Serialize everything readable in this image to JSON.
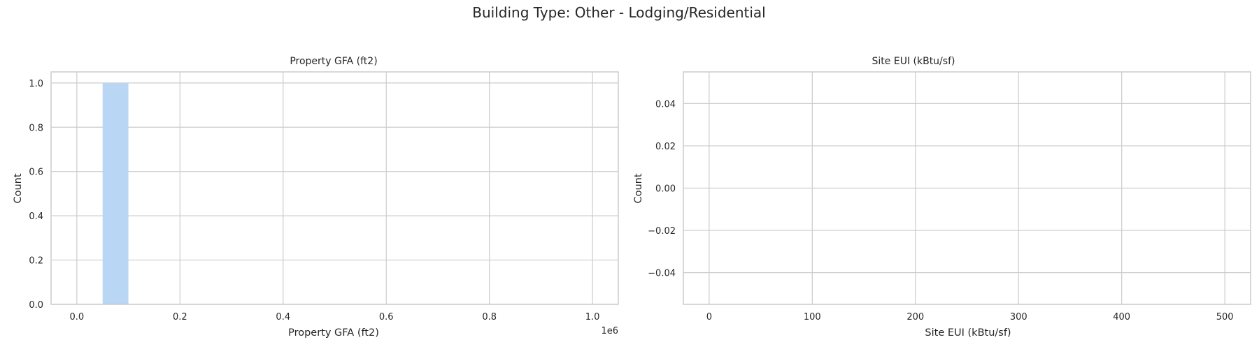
{
  "suptitle": "Building Type: Other - Lodging/Residential",
  "chart_data": [
    {
      "type": "bar",
      "subtype": "histogram",
      "title": "Property GFA (ft2)",
      "xlabel": "Property GFA (ft2)",
      "ylabel": "Count",
      "x_offset_label": "1e6",
      "xlim": [
        -0.05,
        1.05
      ],
      "ylim": [
        0,
        1.05
      ],
      "xticks": [
        0.0,
        0.2,
        0.4,
        0.6,
        0.8,
        1.0
      ],
      "xtick_labels": [
        "0.0",
        "0.2",
        "0.4",
        "0.6",
        "0.8",
        "1.0"
      ],
      "yticks": [
        0.0,
        0.2,
        0.4,
        0.6,
        0.8,
        1.0
      ],
      "ytick_labels": [
        "0.0",
        "0.2",
        "0.4",
        "0.6",
        "0.8",
        "1.0"
      ],
      "bins": [
        {
          "x0": 0.05,
          "x1": 0.1,
          "count": 1
        }
      ],
      "bar_color": "#b9d6f5",
      "grid": true
    },
    {
      "type": "bar",
      "subtype": "histogram",
      "title": "Site EUI (kBtu/sf)",
      "xlabel": "Site EUI (kBtu/sf)",
      "ylabel": "Count",
      "xlim": [
        -25,
        525
      ],
      "ylim": [
        -0.055,
        0.055
      ],
      "xticks": [
        0,
        100,
        200,
        300,
        400,
        500
      ],
      "xtick_labels": [
        "0",
        "100",
        "200",
        "300",
        "400",
        "500"
      ],
      "yticks": [
        -0.04,
        -0.02,
        0.0,
        0.02,
        0.04
      ],
      "ytick_labels": [
        "−0.04",
        "−0.02",
        "0.00",
        "0.02",
        "0.04"
      ],
      "bins": [],
      "bar_color": "#b9d6f5",
      "grid": true
    }
  ]
}
